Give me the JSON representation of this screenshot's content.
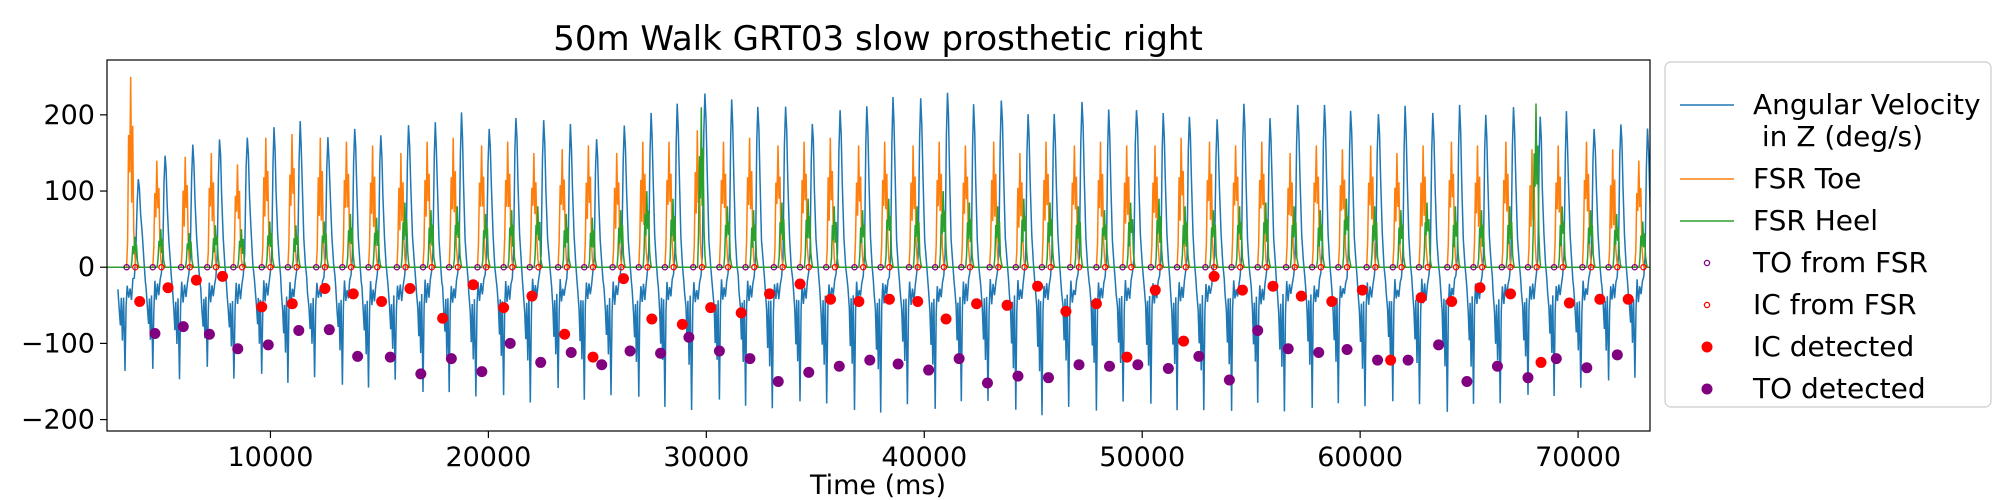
{
  "chart_data": {
    "type": "line",
    "title": "50m Walk GRT03 slow prosthetic right",
    "xlabel": "Time (ms)",
    "ylabel": "",
    "xlim": [
      2500,
      73300
    ],
    "ylim": [
      -215,
      272
    ],
    "xticks": [
      10000,
      20000,
      30000,
      40000,
      50000,
      60000,
      70000
    ],
    "yticks": [
      200,
      100,
      0,
      -100,
      -200
    ],
    "grid": false,
    "legend_position": "outside-right",
    "colors": {
      "gyro": "#1f77b4",
      "toe": "#ff7f0e",
      "heel": "#2ca02c",
      "to_fsr": "#800080",
      "ic_fsr": "#ff0000",
      "ic_detected": "#ff0000",
      "to_detected": "#800080"
    },
    "legend": [
      {
        "key": "gyro",
        "kind": "line",
        "label_lines": [
          "Angular Velocity",
          " in Z (deg/s)"
        ]
      },
      {
        "key": "toe",
        "kind": "line",
        "label_lines": [
          "FSR Toe"
        ]
      },
      {
        "key": "heel",
        "kind": "line",
        "label_lines": [
          "FSR Heel"
        ]
      },
      {
        "key": "to_fsr",
        "kind": "hollow",
        "label_lines": [
          "TO from FSR"
        ]
      },
      {
        "key": "ic_fsr",
        "kind": "hollow",
        "label_lines": [
          "IC from FSR"
        ]
      },
      {
        "key": "ic_detected",
        "kind": "filled",
        "label_lines": [
          "IC detected"
        ]
      },
      {
        "key": "to_detected",
        "kind": "filled",
        "label_lines": [
          "TO detected"
        ]
      }
    ],
    "series": [
      {
        "name": "Angular Velocity in Z (deg/s)",
        "key": "gyro",
        "cycle_start_x": [
          3000,
          4300,
          5500,
          6800,
          8000,
          9300,
          10500,
          11700,
          13000,
          14200,
          15400,
          16700,
          17900,
          19100,
          20400,
          21600,
          22900,
          24100,
          25300,
          26600,
          27800,
          29000,
          30300,
          31500,
          32700,
          34000,
          35200,
          36500,
          37700,
          38900,
          40200,
          41400,
          42600,
          43900,
          45100,
          46300,
          47600,
          48800,
          50100,
          51300,
          52500,
          53800,
          55000,
          56200,
          57500,
          58700,
          59900,
          61200,
          62400,
          63700,
          64900,
          66100,
          67400,
          68600,
          69800,
          71100,
          72300
        ],
        "cycle_peak_y": [
          120,
          150,
          160,
          170,
          175,
          180,
          190,
          170,
          185,
          175,
          185,
          190,
          200,
          185,
          200,
          190,
          185,
          170,
          190,
          200,
          215,
          230,
          225,
          215,
          210,
          190,
          205,
          215,
          220,
          220,
          230,
          210,
          220,
          205,
          200,
          215,
          205,
          210,
          200,
          200,
          195,
          215,
          200,
          210,
          215,
          210,
          205,
          210,
          200,
          210,
          200,
          210,
          195,
          200,
          185,
          190,
          180
        ],
        "cycle_trough_y": [
          -140,
          -130,
          -145,
          -135,
          -150,
          -140,
          -155,
          -145,
          -150,
          -160,
          -150,
          -165,
          -160,
          -170,
          -165,
          -175,
          -160,
          -170,
          -165,
          -175,
          -180,
          -185,
          -175,
          -180,
          -185,
          -175,
          -180,
          -185,
          -190,
          -180,
          -185,
          -175,
          -180,
          -185,
          -190,
          -180,
          -185,
          -175,
          -180,
          -185,
          -190,
          -185,
          -180,
          -190,
          -185,
          -180,
          -185,
          -175,
          -180,
          -185,
          -180,
          -175,
          -170,
          -165,
          -160,
          -150,
          -140
        ]
      },
      {
        "name": "FSR Toe",
        "key": "toe",
        "burst_x": [
          3400,
          4600,
          5900,
          7100,
          8300,
          9600,
          10800,
          12100,
          13300,
          14500,
          15800,
          17000,
          18200,
          19500,
          20700,
          21900,
          23200,
          24400,
          25700,
          26900,
          28100,
          29400,
          30600,
          31800,
          33100,
          34300,
          35500,
          36800,
          38000,
          39300,
          40500,
          41700,
          43000,
          44200,
          45400,
          46700,
          47900,
          49100,
          50400,
          51600,
          52900,
          54100,
          55300,
          56600,
          57800,
          59000,
          60300,
          61500,
          62700,
          64000,
          65200,
          66500,
          67700,
          68900,
          70200,
          71400,
          72600
        ],
        "burst_peak_y": [
          250,
          140,
          145,
          150,
          135,
          170,
          175,
          170,
          165,
          160,
          150,
          165,
          170,
          160,
          165,
          150,
          155,
          160,
          150,
          165,
          165,
          180,
          165,
          170,
          160,
          165,
          170,
          160,
          165,
          160,
          165,
          160,
          165,
          150,
          165,
          160,
          165,
          160,
          160,
          170,
          165,
          160,
          165,
          150,
          160,
          155,
          160,
          150,
          160,
          165,
          160,
          165,
          155,
          160,
          165,
          155,
          140
        ]
      },
      {
        "name": "FSR Heel",
        "key": "heel",
        "burst_x": [
          3600,
          4800,
          6100,
          7300,
          8500,
          9800,
          11000,
          12300,
          13500,
          14700,
          16000,
          17200,
          18400,
          19700,
          20900,
          22100,
          23400,
          24600,
          25900,
          27100,
          28300,
          29600,
          30800,
          32000,
          33300,
          34500,
          35700,
          37000,
          38200,
          39500,
          40700,
          41900,
          43200,
          44400,
          45600,
          46900,
          48100,
          49300,
          50600,
          51800,
          53100,
          54300,
          55500,
          56800,
          58000,
          59200,
          60500,
          61700,
          62900,
          64200,
          65400,
          66700,
          67900,
          69100,
          70400,
          71600,
          72800
        ],
        "burst_peak_y": [
          40,
          50,
          45,
          55,
          50,
          60,
          55,
          60,
          70,
          65,
          85,
          75,
          80,
          70,
          75,
          80,
          70,
          65,
          75,
          100,
          90,
          210,
          80,
          75,
          85,
          90,
          80,
          75,
          90,
          80,
          100,
          85,
          80,
          90,
          85,
          80,
          75,
          85,
          90,
          80,
          75,
          80,
          85,
          80,
          75,
          90,
          80,
          75,
          85,
          80,
          75,
          80,
          215,
          80,
          75,
          70,
          60
        ]
      }
    ],
    "markers": {
      "to_from_fsr": {
        "y": 0,
        "x": [
          3400,
          4600,
          5900,
          7100,
          8300,
          9600,
          10800,
          12100,
          13300,
          14500,
          15800,
          17000,
          18200,
          19500,
          20700,
          21900,
          23200,
          24400,
          25700,
          26900,
          28100,
          29400,
          30600,
          31800,
          33100,
          34300,
          35500,
          36800,
          38000,
          39300,
          40500,
          41700,
          43000,
          44200,
          45400,
          46700,
          47900,
          49100,
          50400,
          51600,
          52900,
          54100,
          55300,
          56600,
          57800,
          59000,
          60300,
          61500,
          62700,
          64000,
          65200,
          66500,
          67700,
          68900,
          70200,
          71400,
          72600
        ]
      },
      "ic_from_fsr": {
        "y": 0,
        "x": [
          3800,
          5000,
          6300,
          7500,
          8700,
          10000,
          11200,
          12500,
          13700,
          14900,
          16200,
          17400,
          18600,
          19900,
          21100,
          22300,
          23600,
          24800,
          26100,
          27300,
          28500,
          29800,
          31000,
          32200,
          33500,
          34700,
          35900,
          37200,
          38400,
          39700,
          40900,
          42100,
          43400,
          44600,
          45800,
          47100,
          48300,
          49500,
          50800,
          52000,
          53300,
          54500,
          55700,
          57000,
          58200,
          59400,
          60700,
          61900,
          63100,
          64400,
          65600,
          66900,
          68100,
          69300,
          70600,
          71800,
          73000
        ]
      },
      "ic_detected": {
        "x": [
          4000,
          5300,
          6600,
          7800,
          9600,
          11000,
          12500,
          13800,
          15100,
          16400,
          17900,
          19300,
          20700,
          22000,
          23500,
          24800,
          26200,
          27500,
          28900,
          30200,
          31600,
          32900,
          34300,
          35700,
          37000,
          38400,
          39700,
          41000,
          42400,
          43800,
          45200,
          46500,
          47900,
          49300,
          50600,
          51900,
          53300,
          54600,
          56000,
          57300,
          58700,
          60100,
          61400,
          62800,
          64200,
          65500,
          66900,
          68300,
          69600,
          71000,
          72300
        ],
        "y": [
          -45,
          -27,
          -17,
          -12,
          -52,
          -48,
          -28,
          -35,
          -45,
          -28,
          -67,
          -23,
          -53,
          -38,
          -88,
          -118,
          -15,
          -68,
          -75,
          -53,
          -60,
          -35,
          -22,
          -42,
          -45,
          -42,
          -45,
          -68,
          -48,
          -50,
          -25,
          -58,
          -48,
          -118,
          -30,
          -97,
          -12,
          -30,
          -25,
          -38,
          -45,
          -30,
          -122,
          -40,
          -45,
          -27,
          -35,
          -125,
          -47,
          -42,
          -42
        ]
      },
      "to_detected": {
        "x": [
          4700,
          6000,
          7200,
          8500,
          9900,
          11300,
          12700,
          14000,
          15500,
          16900,
          18300,
          19700,
          21000,
          22400,
          23800,
          25200,
          26500,
          27900,
          29200,
          30600,
          32000,
          33300,
          34700,
          36100,
          37500,
          38800,
          40200,
          41600,
          42900,
          44300,
          45700,
          47100,
          48500,
          49800,
          51200,
          52600,
          54000,
          55300,
          56700,
          58100,
          59400,
          60800,
          62200,
          63600,
          64900,
          66300,
          67700,
          69000,
          70400,
          71800
        ],
        "y": [
          -87,
          -78,
          -88,
          -107,
          -102,
          -83,
          -82,
          -117,
          -118,
          -140,
          -120,
          -137,
          -100,
          -125,
          -112,
          -128,
          -110,
          -113,
          -92,
          -110,
          -120,
          -150,
          -138,
          -130,
          -122,
          -127,
          -135,
          -120,
          -152,
          -143,
          -145,
          -128,
          -130,
          -128,
          -133,
          -117,
          -148,
          -83,
          -107,
          -112,
          -108,
          -122,
          -122,
          -102,
          -150,
          -130,
          -145,
          -120,
          -132,
          -115
        ]
      }
    }
  }
}
